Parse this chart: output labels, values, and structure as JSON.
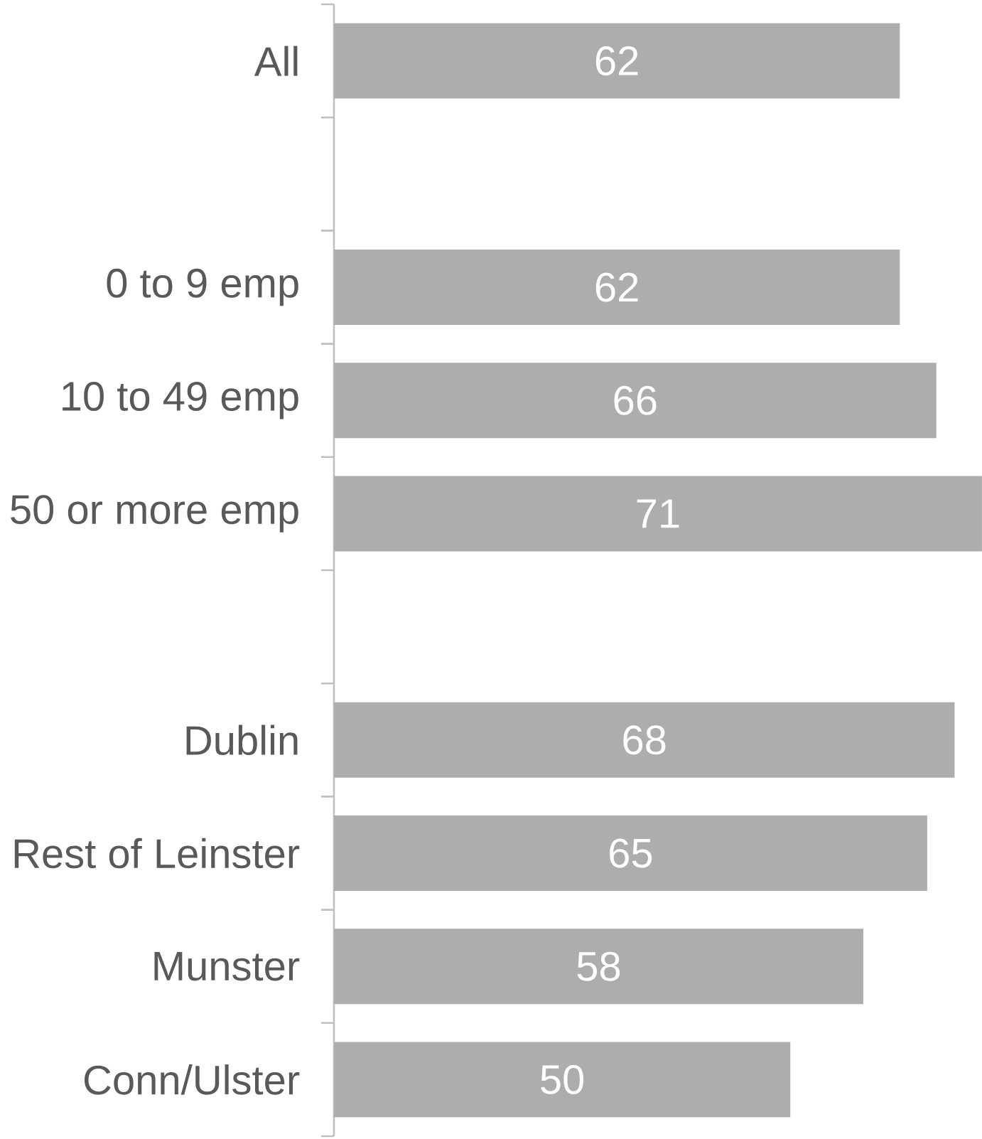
{
  "chart_data": {
    "type": "bar",
    "orientation": "horizontal",
    "categories": [
      "All",
      null,
      "0 to 9 emp",
      "10 to 49 emp",
      "50 or more emp",
      null,
      "Dublin",
      "Rest of Leinster",
      "Munster",
      "Conn/Ulster"
    ],
    "values": [
      62,
      null,
      62,
      66,
      71,
      null,
      68,
      65,
      58,
      50
    ],
    "color": "#adadad",
    "data_labels": true,
    "xlim": [
      0,
      71
    ],
    "tick_labels": "y"
  }
}
